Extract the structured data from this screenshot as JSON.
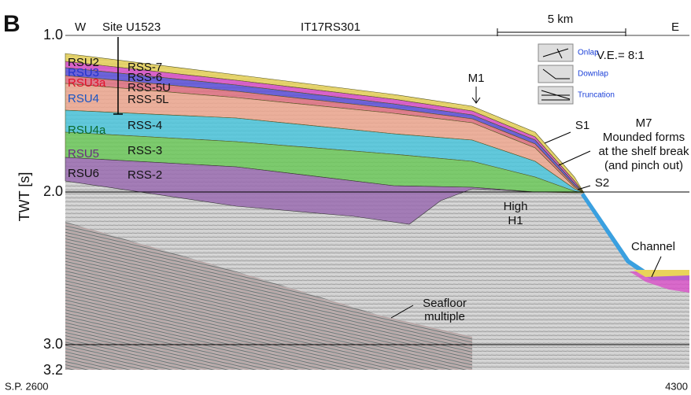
{
  "panel_label": "B",
  "header": {
    "west": "W",
    "site": "Site U1523",
    "profile": "IT17RS301",
    "scale": "5 km",
    "east": "E",
    "vertical_exaggeration": "V.E.= 8:1"
  },
  "legend": [
    "Onlap",
    "Downlap",
    "Truncation"
  ],
  "units_left": [
    "RSU2",
    "RSU3",
    "RSU3a",
    "RSU4",
    "RSU4a",
    "RSU5",
    "RSU6"
  ],
  "sequences": [
    "RSS-7",
    "RSS-6",
    "RSS-5U",
    "RSS-5L",
    "RSS-4",
    "RSS-3",
    "RSS-2"
  ],
  "annotations": {
    "m1": "M1",
    "s1": "S1",
    "m7": [
      "M7",
      "Mounded forms",
      "at the shelf break",
      "(and pinch out)"
    ],
    "s2": "S2",
    "high": [
      "High",
      "H1"
    ],
    "channel": "Channel",
    "multiple": [
      "Seafloor",
      "multiple"
    ]
  },
  "axis": {
    "label": "TWT [s]",
    "ticks": [
      "1.0",
      "2.0",
      "3.0",
      "3.2"
    ],
    "sp_start": "S.P. 2600",
    "sp_end": "4300"
  }
}
